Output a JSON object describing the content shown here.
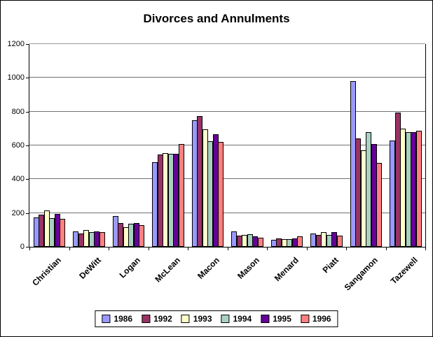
{
  "window": {
    "background": "#FFFFFF",
    "frame_border_color": "#000000",
    "axis_color": "#000000",
    "grid_color": "#707070"
  },
  "chart_data": {
    "type": "bar",
    "title": "Divorces and Annulments",
    "xlabel": "",
    "ylabel": "",
    "ylim": [
      0,
      1200
    ],
    "yticks": [
      0,
      200,
      400,
      600,
      800,
      1000,
      1200
    ],
    "grid": "horizontal",
    "legend_position": "bottom",
    "categories": [
      "Christian",
      "DeWitt",
      "Logan",
      "McLean",
      "Macon",
      "Mason",
      "Menard",
      "Piatt",
      "Sangamon",
      "Tazewell"
    ],
    "series": [
      {
        "name": "1986",
        "color": "#9999FF",
        "values": [
          175,
          90,
          180,
          500,
          750,
          90,
          40,
          80,
          980,
          630
        ]
      },
      {
        "name": "1992",
        "color": "#993366",
        "values": [
          190,
          80,
          140,
          545,
          775,
          65,
          50,
          70,
          640,
          795
        ]
      },
      {
        "name": "1993",
        "color": "#FFFFCC",
        "values": [
          215,
          100,
          115,
          555,
          695,
          70,
          45,
          85,
          570,
          700
        ]
      },
      {
        "name": "1994",
        "color": "#A9D1C2",
        "values": [
          170,
          85,
          135,
          550,
          625,
          75,
          45,
          70,
          680,
          680
        ]
      },
      {
        "name": "1995",
        "color": "#660099",
        "values": [
          195,
          90,
          140,
          550,
          665,
          60,
          50,
          85,
          610,
          680
        ]
      },
      {
        "name": "1996",
        "color": "#FF8080",
        "values": [
          165,
          85,
          130,
          610,
          620,
          55,
          60,
          65,
          495,
          685
        ]
      }
    ]
  }
}
